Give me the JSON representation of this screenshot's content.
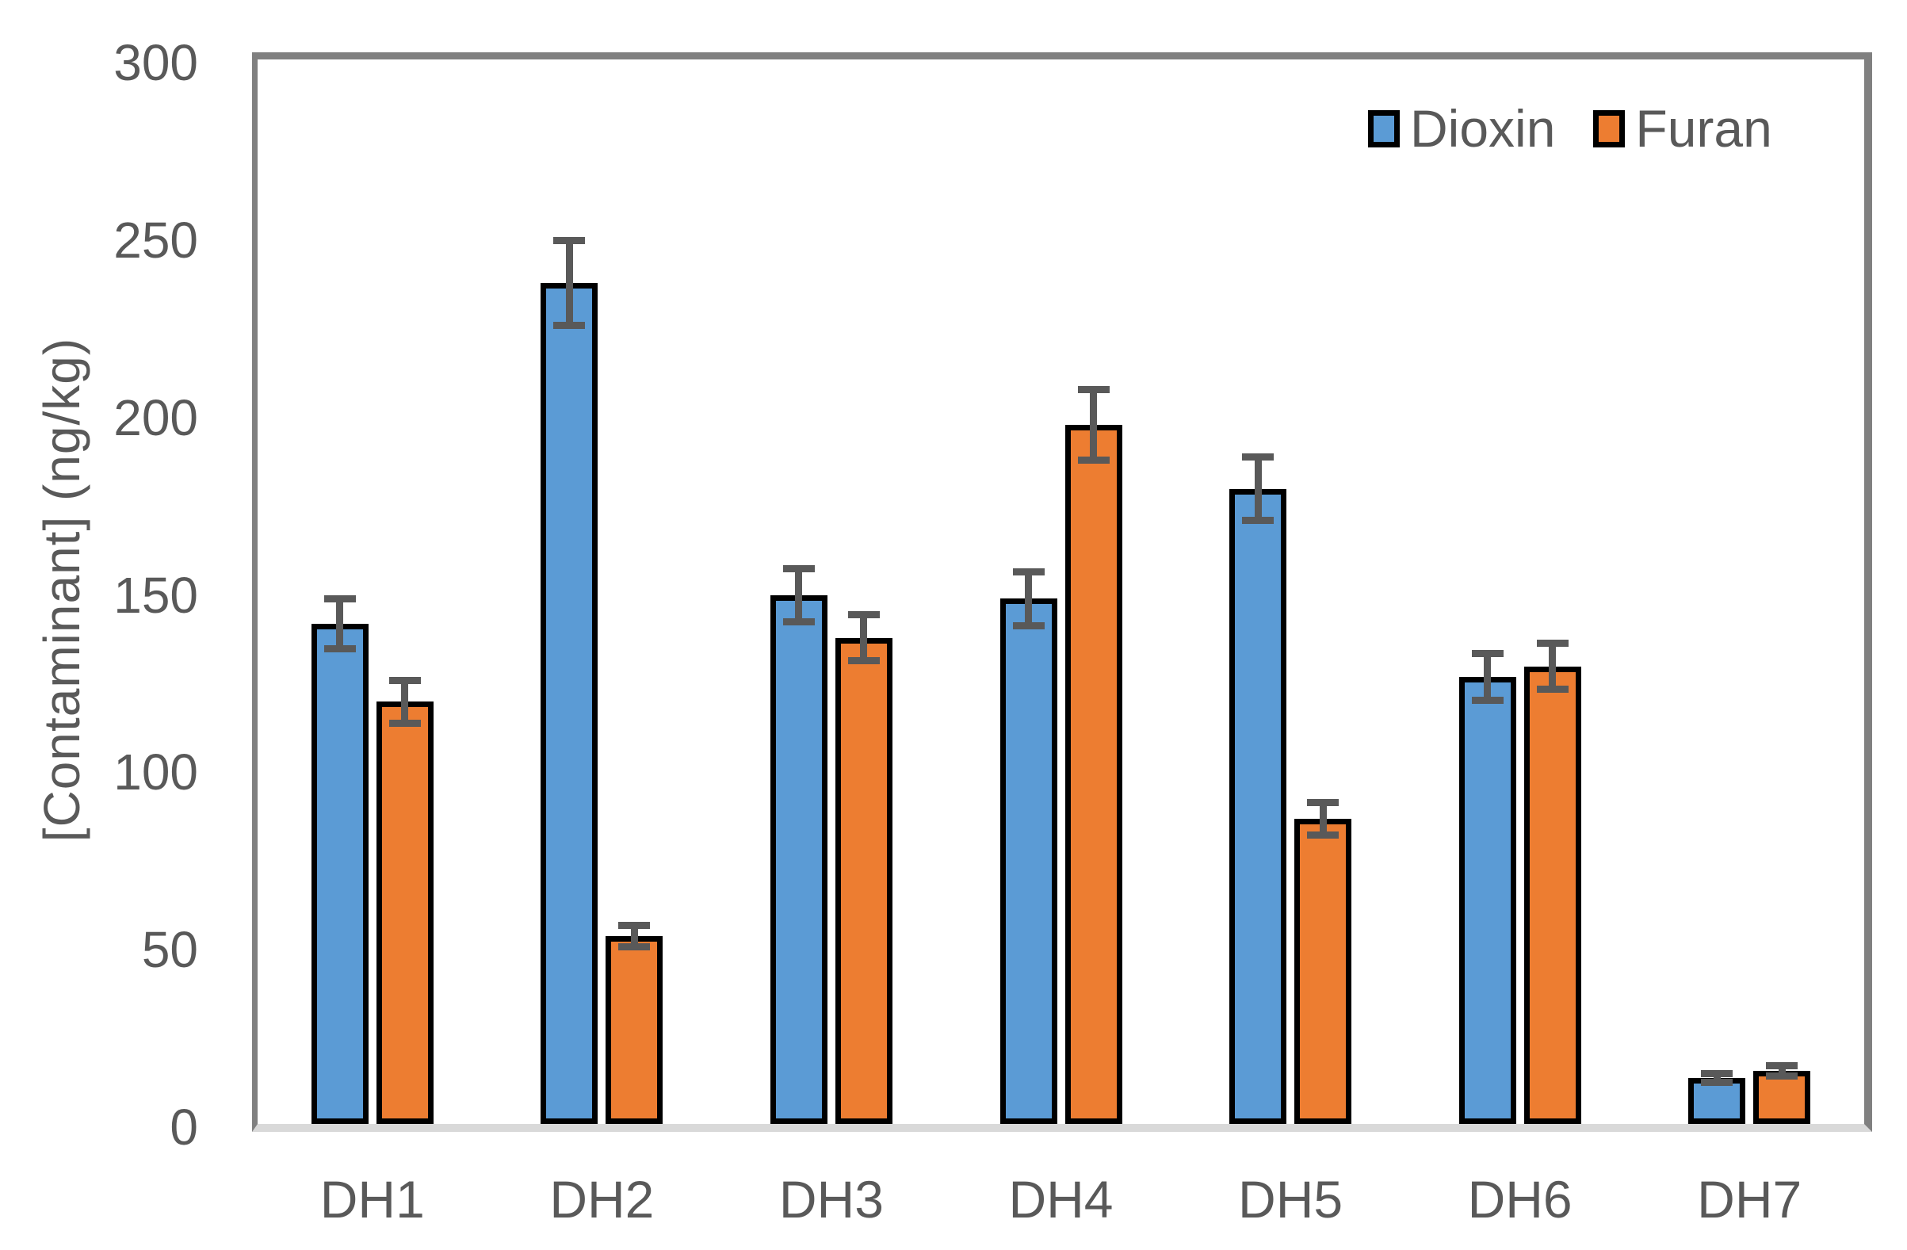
{
  "chart_data": {
    "type": "bar",
    "title": "",
    "xlabel": "",
    "ylabel": "[Contaminant] (ng/kg)",
    "categories": [
      "DH1",
      "DH2",
      "DH3",
      "DH4",
      "DH5",
      "DH6",
      "DH7"
    ],
    "series": [
      {
        "name": "Dioxin",
        "color": "#5B9BD5",
        "values": [
          141,
          237,
          149,
          148,
          179,
          126,
          13
        ],
        "errors": [
          7,
          12,
          7.5,
          7.5,
          9,
          6.5,
          1.2
        ]
      },
      {
        "name": "Furan",
        "color": "#ED7D31",
        "values": [
          119,
          53,
          137,
          197,
          86,
          129,
          15
        ],
        "errors": [
          6,
          3,
          6.5,
          10,
          4.5,
          6.5,
          1.5
        ]
      }
    ],
    "ylim": [
      0,
      300
    ],
    "y_ticks": [
      0,
      50,
      100,
      150,
      200,
      250,
      300
    ],
    "grid": false,
    "legend_position": "top-right-inside",
    "error_bars": true,
    "bar_border_color": "#000000",
    "error_bar_color": "#595959",
    "axis_line_color": "#808080",
    "baseline_color": "#D9D9D9",
    "text_color": "#595959",
    "plot_background": "#FFFFFF"
  }
}
